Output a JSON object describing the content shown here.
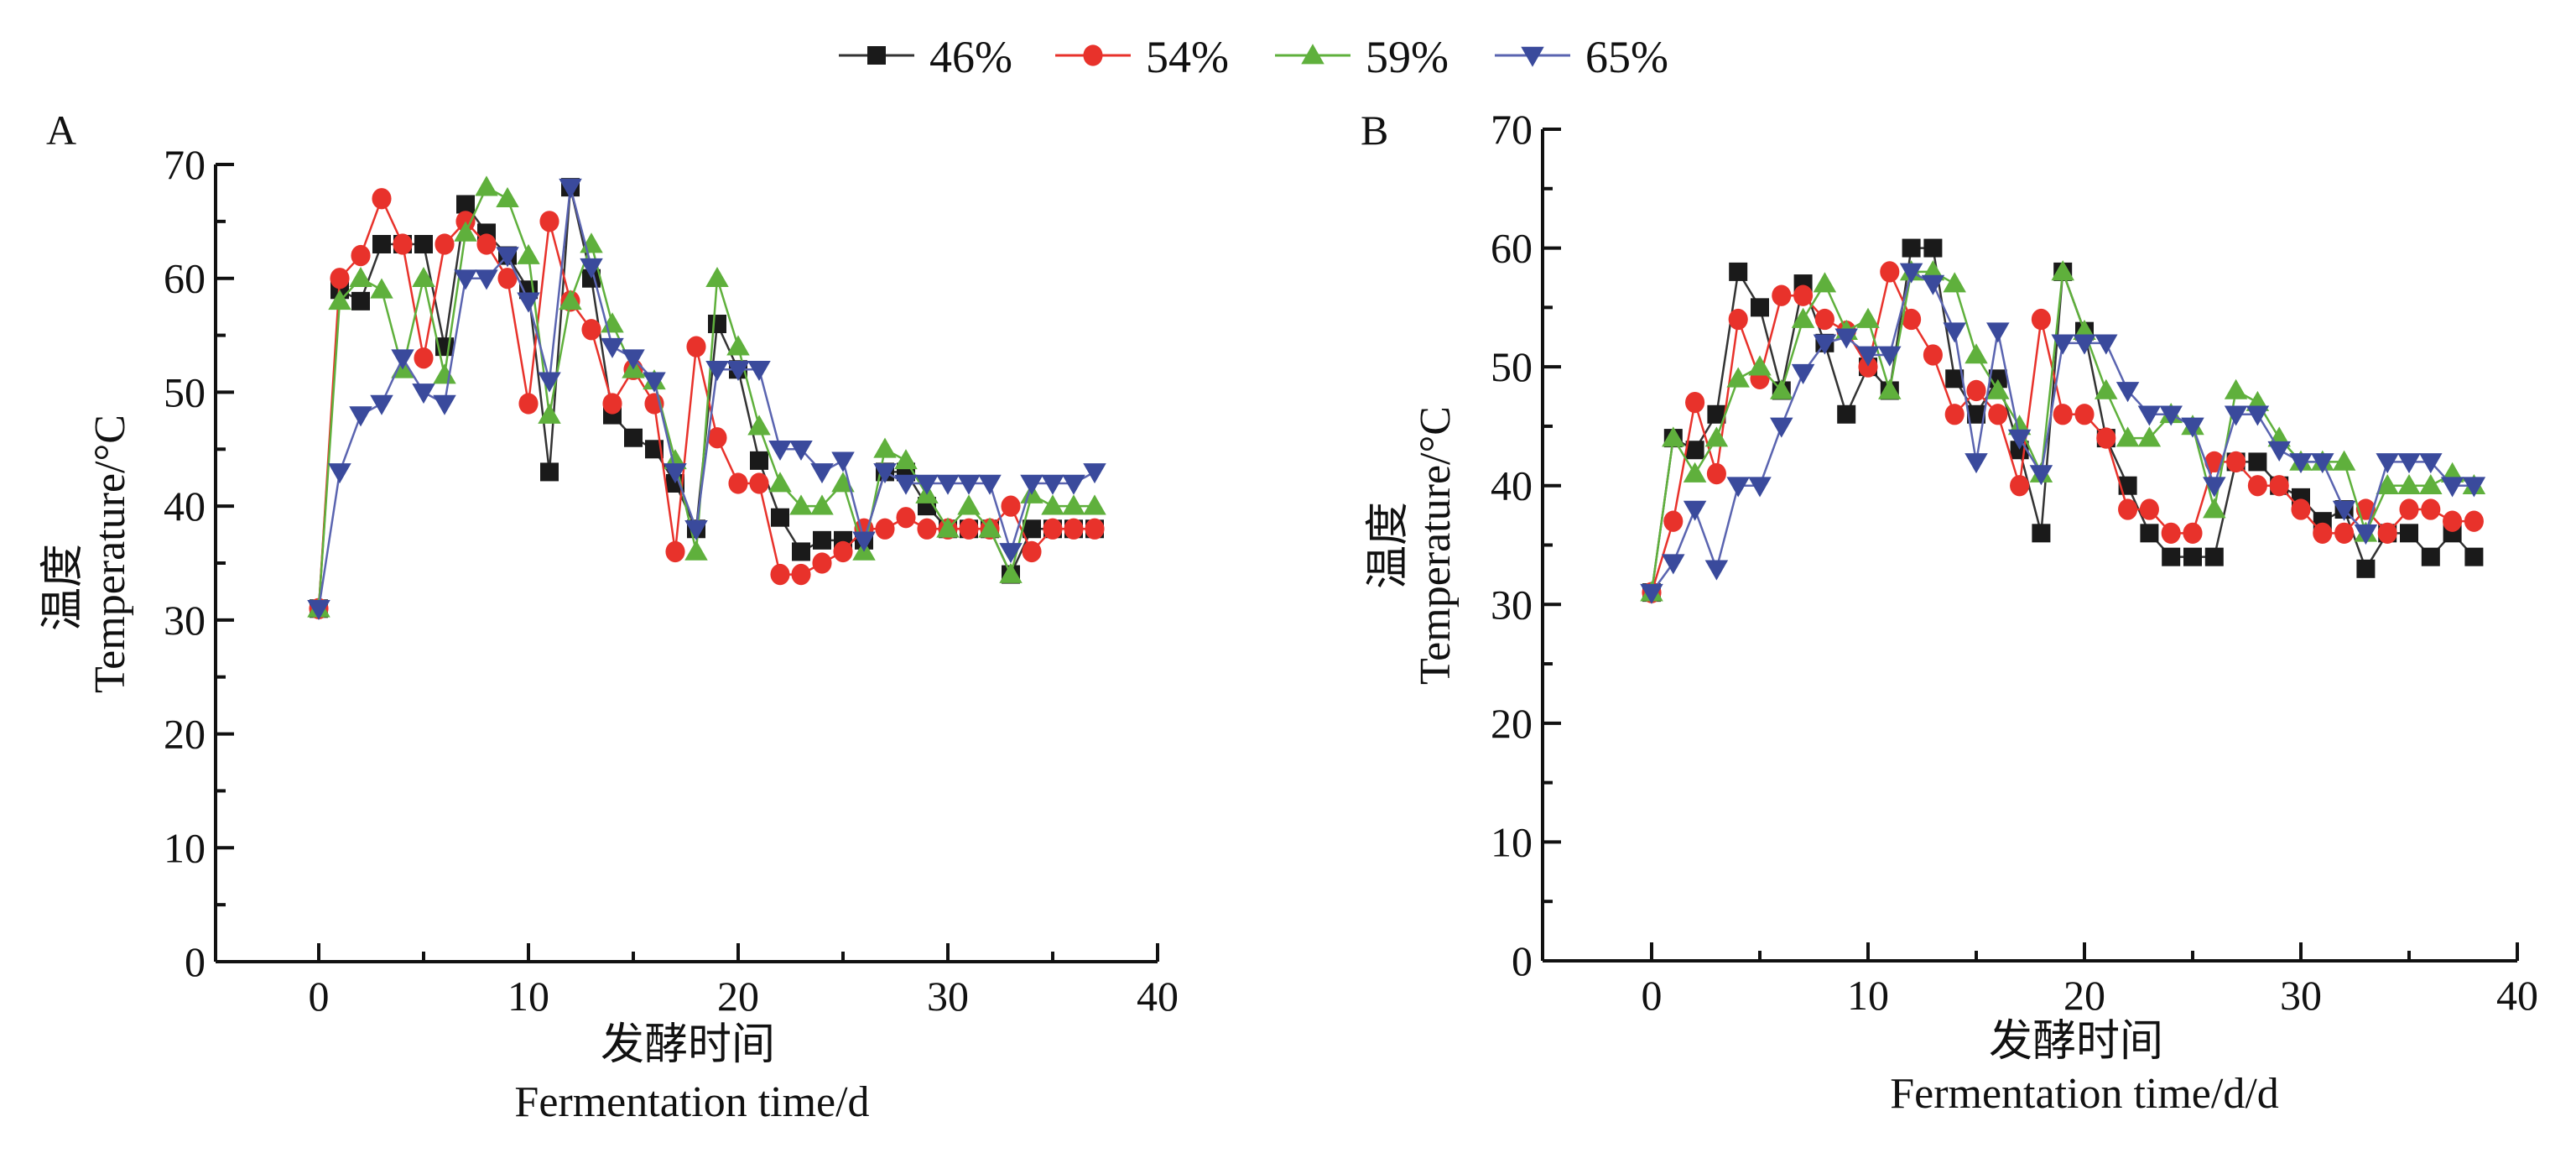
{
  "legend": [
    {
      "name": "46%",
      "color": "#1a1a1a",
      "line": "#333333",
      "marker": "square"
    },
    {
      "name": "54%",
      "color": "#e8322b",
      "line": "#e8322b",
      "marker": "circle"
    },
    {
      "name": "59%",
      "color": "#5fb03c",
      "line": "#5fb03c",
      "marker": "triangle-up"
    },
    {
      "name": "65%",
      "color": "#3a4a9c",
      "line": "#5a64b0",
      "marker": "triangle-down"
    }
  ],
  "chart_data": [
    {
      "type": "line",
      "panel": "A",
      "title": "",
      "ylabel_cn": "温度",
      "ylabel": "Temperature/°C",
      "xlabel_cn": "发酵时间",
      "xlabel": "Fermentation time/d",
      "xlim": [
        -5,
        40
      ],
      "ylim": [
        0,
        70
      ],
      "xticks": [
        0,
        10,
        20,
        30,
        40
      ],
      "yticks": [
        0,
        10,
        20,
        30,
        40,
        50,
        60,
        70
      ],
      "grid": false,
      "legend_position": "top-center",
      "x": [
        0,
        1,
        2,
        3,
        4,
        5,
        6,
        7,
        8,
        9,
        10,
        11,
        12,
        13,
        14,
        15,
        16,
        17,
        18,
        19,
        20,
        21,
        22,
        23,
        24,
        25,
        26,
        27,
        28,
        29,
        30,
        31,
        32,
        33,
        34,
        35,
        36,
        37
      ],
      "series": [
        {
          "name": "46%",
          "values": [
            31,
            59,
            58,
            63,
            63,
            63,
            54,
            66.5,
            64,
            62,
            59,
            43,
            68,
            60,
            48,
            46,
            45,
            42,
            38,
            56,
            52,
            44,
            39,
            36,
            37,
            37,
            37,
            43,
            43,
            40,
            38,
            38,
            38,
            34,
            38,
            38,
            38,
            38
          ]
        },
        {
          "name": "54%",
          "values": [
            31,
            60,
            62,
            67,
            63,
            53,
            63,
            65,
            63,
            60,
            49,
            65,
            58,
            55.5,
            49,
            52,
            49,
            36,
            54,
            46,
            42,
            42,
            34,
            34,
            35,
            36,
            38,
            38,
            39,
            38,
            38,
            38,
            38,
            40,
            36,
            38,
            38,
            38
          ]
        },
        {
          "name": "59%",
          "values": [
            31,
            58,
            60,
            59,
            52,
            60,
            51.5,
            64,
            68,
            67,
            62,
            48,
            58,
            63,
            56,
            52,
            51,
            44,
            36,
            60,
            54,
            47,
            42,
            40,
            40,
            42,
            36,
            45,
            44,
            41,
            38,
            40,
            38,
            34,
            41,
            40,
            40,
            40
          ]
        },
        {
          "name": "65%",
          "values": [
            31,
            43,
            48,
            49,
            53,
            50,
            49,
            60,
            60,
            62,
            58,
            51,
            68,
            61,
            54,
            53,
            51,
            43,
            38,
            52,
            52,
            52,
            45,
            45,
            43,
            44,
            37,
            43,
            42,
            42,
            42,
            42,
            42,
            36,
            42,
            42,
            42,
            43
          ]
        }
      ]
    },
    {
      "type": "line",
      "panel": "B",
      "title": "",
      "ylabel_cn": "温度",
      "ylabel": "Temperature/°C",
      "xlabel_cn": "发酵时间",
      "xlabel": "Fermentation time/d/d",
      "xlim": [
        -5,
        40
      ],
      "ylim": [
        0,
        70
      ],
      "xticks": [
        0,
        10,
        20,
        30,
        40
      ],
      "yticks": [
        0,
        10,
        20,
        30,
        40,
        50,
        60,
        70
      ],
      "grid": false,
      "legend_position": "top-center",
      "x": [
        0,
        1,
        2,
        3,
        4,
        5,
        6,
        7,
        8,
        9,
        10,
        11,
        12,
        13,
        14,
        15,
        16,
        17,
        18,
        19,
        20,
        21,
        22,
        23,
        24,
        25,
        26,
        27,
        28,
        29,
        30,
        31,
        32,
        33,
        34,
        35,
        36,
        37,
        38
      ],
      "series": [
        {
          "name": "46%",
          "values": [
            31,
            44,
            43,
            46,
            58,
            55,
            48,
            57,
            52,
            46,
            50,
            48,
            60,
            60,
            49,
            46,
            49,
            43,
            36,
            58,
            53,
            44,
            40,
            36,
            34,
            34,
            34,
            42,
            42,
            40,
            39,
            37,
            38,
            33,
            36,
            36,
            34,
            36,
            34
          ]
        },
        {
          "name": "54%",
          "values": [
            31,
            37,
            47,
            41,
            54,
            49,
            56,
            56,
            54,
            53,
            50,
            58,
            54,
            51,
            46,
            48,
            46,
            40,
            54,
            46,
            46,
            44,
            38,
            38,
            36,
            36,
            42,
            42,
            40,
            40,
            38,
            36,
            36,
            38,
            36,
            38,
            38,
            37,
            37
          ]
        },
        {
          "name": "59%",
          "values": [
            31,
            44,
            41,
            44,
            49,
            50,
            48,
            54,
            57,
            53,
            54,
            48,
            58,
            58,
            57,
            51,
            48,
            45,
            41,
            58,
            53,
            48,
            44,
            44,
            46,
            45,
            38,
            48,
            47,
            44,
            42,
            42,
            42,
            36,
            40,
            40,
            40,
            41,
            40
          ]
        },
        {
          "name": "65%",
          "values": [
            31,
            33.5,
            38,
            33,
            40,
            40,
            45,
            49.5,
            52,
            52.5,
            51,
            51,
            58,
            57,
            53,
            42,
            53,
            44,
            41,
            52,
            52,
            52,
            48,
            46,
            46,
            45,
            40,
            46,
            46,
            43,
            42,
            42,
            38,
            36,
            42,
            42,
            42,
            40,
            40
          ]
        }
      ]
    }
  ]
}
